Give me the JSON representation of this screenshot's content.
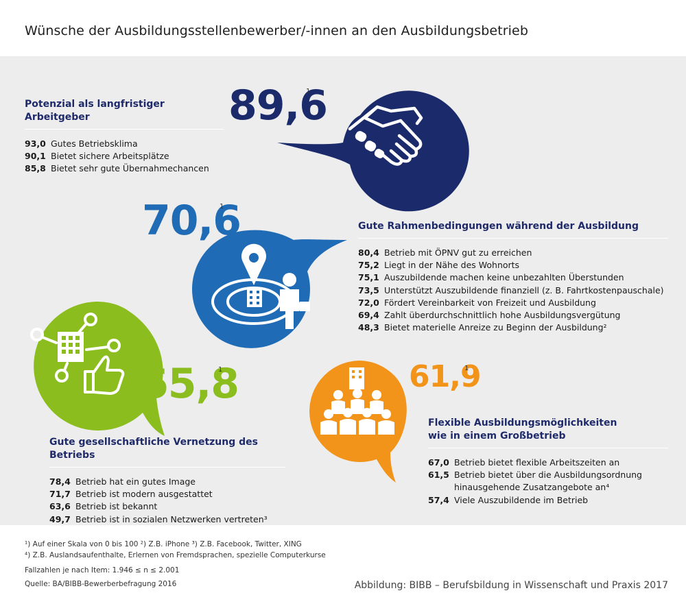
{
  "title": "Wünsche der Ausbildungsstellenbewerber/-innen an den Ausbildungsbetrieb",
  "chart_data": {
    "type": "table",
    "colors": {
      "navy": "#1b2a6b",
      "blue": "#1f6bb5",
      "green": "#8bbd1e",
      "orange": "#f2931a"
    },
    "icons": {
      "navy": "handshake-icon",
      "blue": "location-pin-person-icon",
      "green": "network-thumbs-up-icon",
      "orange": "group-building-icon"
    },
    "categories": [
      {
        "key": "navy",
        "label": "Potenzial als langfristiger Arbeitgeber",
        "score": "89,6",
        "score_sup": "1",
        "items": [
          {
            "value": "93,0",
            "label": "Gutes Betriebsklima"
          },
          {
            "value": "90,1",
            "label": "Bietet sichere Arbeitsplätze"
          },
          {
            "value": "85,8",
            "label": "Bietet sehr gute Übernahmechancen"
          }
        ]
      },
      {
        "key": "blue",
        "label": "Gute Rahmenbedingungen während der Ausbildung",
        "score": "70,6",
        "score_sup": "1",
        "items": [
          {
            "value": "80,4",
            "label": "Betrieb mit ÖPNV gut zu erreichen"
          },
          {
            "value": "75,2",
            "label": "Liegt in der Nähe des Wohnorts"
          },
          {
            "value": "75,1",
            "label": "Auszubildende machen keine unbezahlten Überstunden"
          },
          {
            "value": "73,5",
            "label": "Unterstützt Auszubildende finanziell (z. B. Fahrtkostenpauschale)"
          },
          {
            "value": "72,0",
            "label": "Fördert Vereinbarkeit von Freizeit und Ausbildung"
          },
          {
            "value": "69,4",
            "label": "Zahlt überdurchschnittlich hohe Ausbildungsvergütung"
          },
          {
            "value": "48,3",
            "label": "Bietet materielle Anreize zu Beginn der Ausbildung²"
          }
        ]
      },
      {
        "key": "green",
        "label": "Gute gesellschaftliche Vernetzung des Betriebs",
        "score": "65,8",
        "score_sup": "1",
        "items": [
          {
            "value": "78,4",
            "label": "Betrieb hat ein gutes Image"
          },
          {
            "value": "71,7",
            "label": "Betrieb ist modern ausgestattet"
          },
          {
            "value": "63,6",
            "label": "Betrieb ist bekannt"
          },
          {
            "value": "49,7",
            "label": "Betrieb ist in sozialen Netzwerken vertreten³"
          }
        ]
      },
      {
        "key": "orange",
        "label": "Flexible Ausbildungsmöglichkeiten",
        "label_line2": "wie in einem Großbetrieb",
        "score": "61,9",
        "score_sup": "1",
        "items": [
          {
            "value": "67,0",
            "label": "Betrieb bietet flexible Arbeitszeiten an"
          },
          {
            "value": "61,5",
            "label": "Betrieb bietet über die Ausbildungsordnung",
            "label_line2": "hinausgehende Zusatzangebote an⁴"
          },
          {
            "value": "57,4",
            "label": "Viele Auszubildende im Betrieb"
          }
        ]
      }
    ]
  },
  "footnotes": {
    "line1": "¹) Auf einer Skala von 0 bis 100 ²) Z.B. iPhone ³) Z.B. Facebook, Twitter, XING",
    "line2": "⁴) Z.B. Auslandsaufenthalte, Erlernen von Fremdsprachen, spezielle Computerkurse",
    "cases": "Fallzahlen je nach Item: 1.946 ≤ n ≤ 2.001",
    "source": "Quelle: BA/BIBB-Bewerberbefragung 2016"
  },
  "credit": "Abbildung: BIBB – Berufsbildung in Wissenschaft und Praxis 2017"
}
